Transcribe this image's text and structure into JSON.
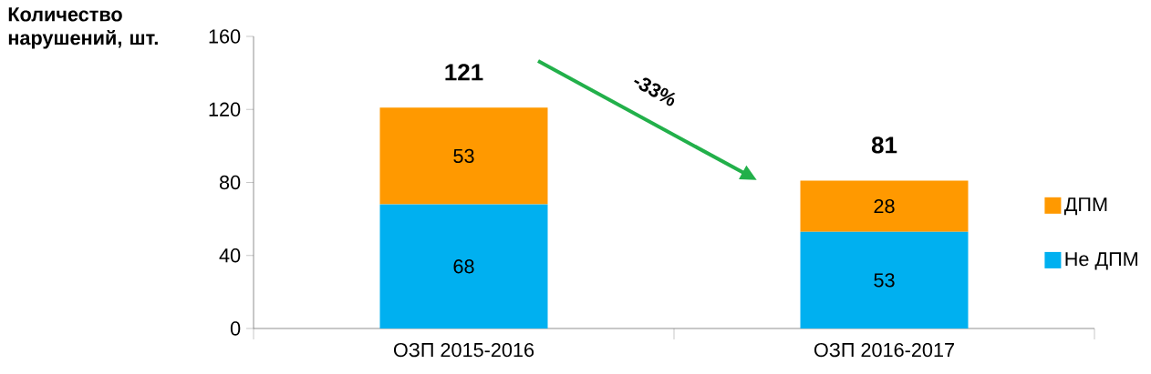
{
  "chart_data": {
    "type": "bar",
    "stacked": true,
    "categories": [
      "ОЗП 2015-2016",
      "ОЗП 2016-2017"
    ],
    "ylabel": "Количество нарушений, шт.",
    "series": [
      {
        "name": "Не ДПМ",
        "color": "#00b0f0",
        "values": [
          68,
          53
        ]
      },
      {
        "name": "ДПМ",
        "color": "#ff9900",
        "values": [
          53,
          28
        ]
      }
    ],
    "ylim": [
      0,
      160
    ],
    "yticks": [
      0,
      40,
      80,
      120,
      160
    ],
    "totals": [
      "121",
      "81"
    ],
    "data_labels": true,
    "legend": "right",
    "annotations": [
      "-33%"
    ]
  }
}
